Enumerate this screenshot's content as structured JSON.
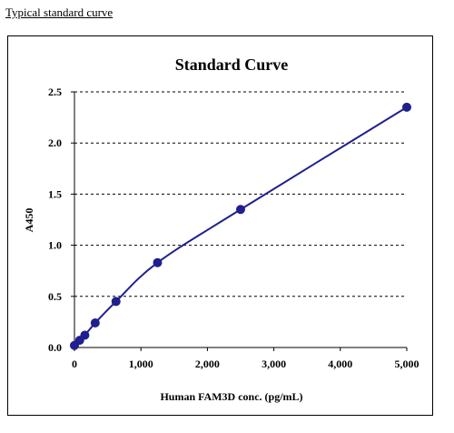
{
  "header": {
    "link_text": "Typical standard curve"
  },
  "chart_data": {
    "type": "line",
    "title": "Standard Curve",
    "xlabel": "Human FAM3D conc. (pg/mL)",
    "ylabel": "A450",
    "xlim": [
      0,
      5000
    ],
    "ylim": [
      0,
      2.5
    ],
    "xticks": [
      0,
      1000,
      2000,
      3000,
      4000,
      5000
    ],
    "xtick_labels": [
      "0",
      "1,000",
      "2,000",
      "3,000",
      "4,000",
      "5,000"
    ],
    "yticks": [
      0,
      0.5,
      1.0,
      1.5,
      2.0,
      2.5
    ],
    "ytick_labels": [
      "0.0",
      "0.5",
      "1.0",
      "1.5",
      "2.0",
      "2.5"
    ],
    "grid": "horizontal dashed",
    "series": [
      {
        "color": "#1f1f8f",
        "x": [
          0,
          78,
          156,
          312,
          625,
          1250,
          2500,
          5000
        ],
        "y": [
          0.02,
          0.07,
          0.12,
          0.24,
          0.45,
          0.83,
          1.35,
          2.35
        ]
      }
    ]
  }
}
